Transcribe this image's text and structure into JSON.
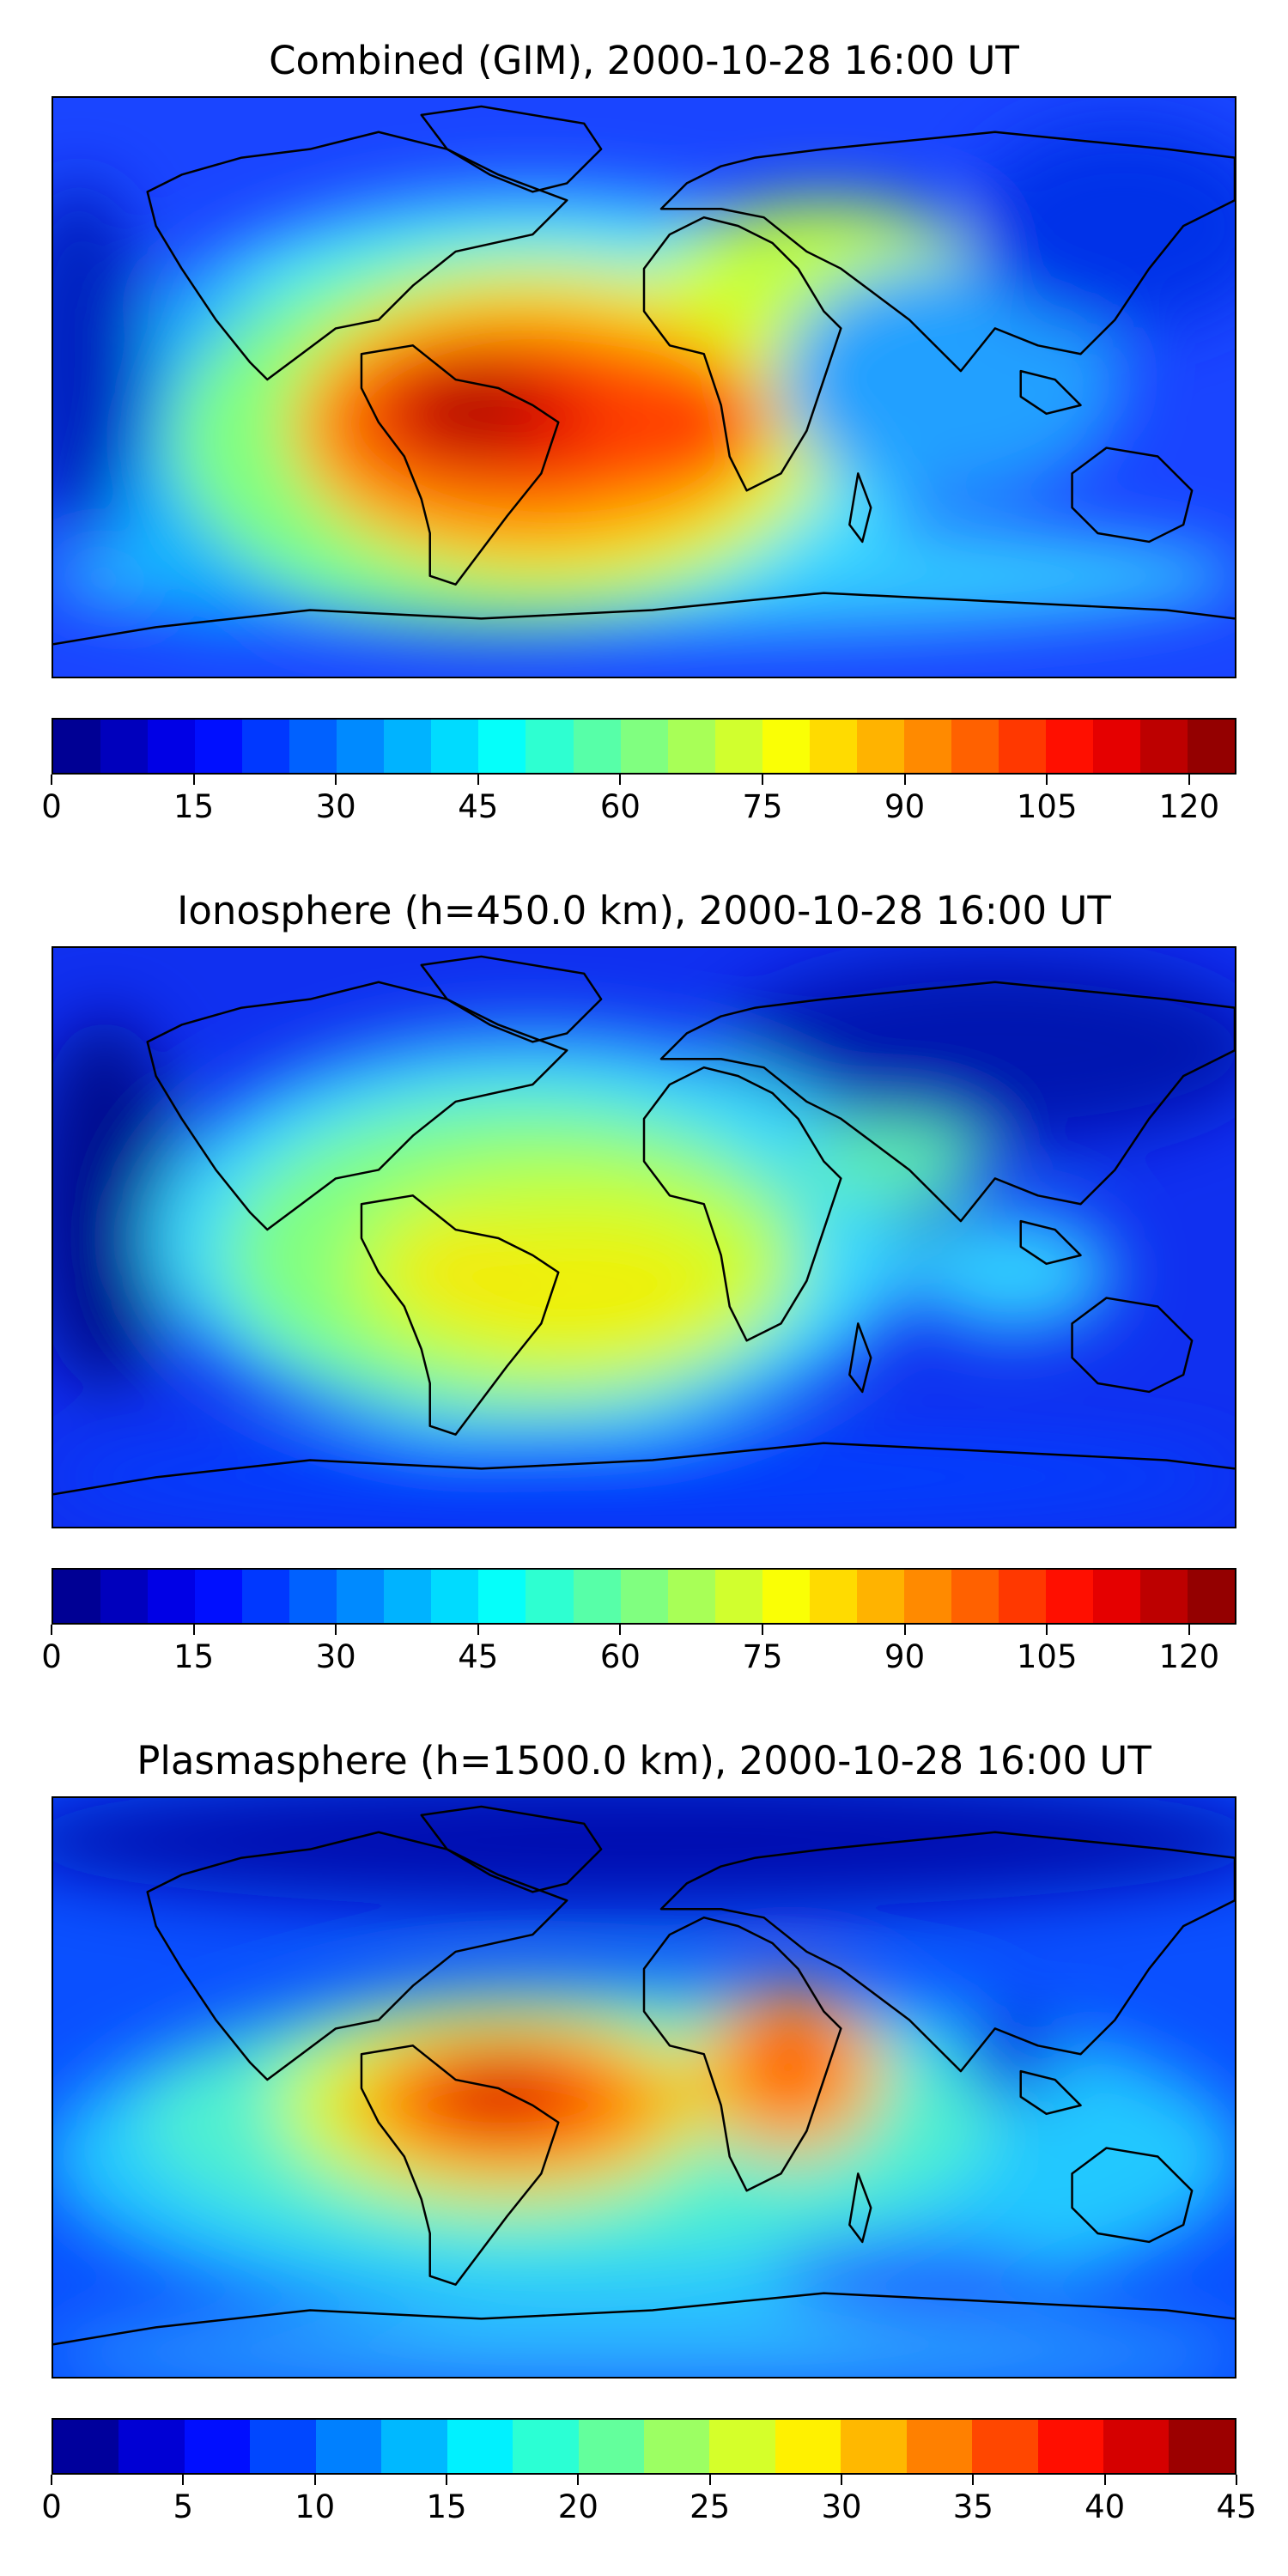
{
  "panels": [
    {
      "title": "Combined (GIM), 2000-10-28 16:00 UT",
      "colorbar": {
        "min": 0,
        "max": 125,
        "levels": 25,
        "tick_labels": [
          "0",
          "15",
          "30",
          "45",
          "60",
          "75",
          "90",
          "105",
          "120"
        ]
      }
    },
    {
      "title": "Ionosphere  (h=450.0 km), 2000-10-28 16:00 UT",
      "colorbar": {
        "min": 0,
        "max": 125,
        "levels": 25,
        "tick_labels": [
          "0",
          "15",
          "30",
          "45",
          "60",
          "75",
          "90",
          "105",
          "120"
        ]
      }
    },
    {
      "title": "Plasmasphere (h=1500.0 km), 2000-10-28 16:00 UT",
      "colorbar": {
        "min": 0,
        "max": 45,
        "levels": 18,
        "tick_labels": [
          "0",
          "5",
          "10",
          "15",
          "20",
          "25",
          "30",
          "35",
          "40",
          "45"
        ]
      }
    }
  ],
  "colormap": "jet",
  "map": {
    "projection": "plate-carree",
    "extent": "global",
    "coastlines": true
  }
}
